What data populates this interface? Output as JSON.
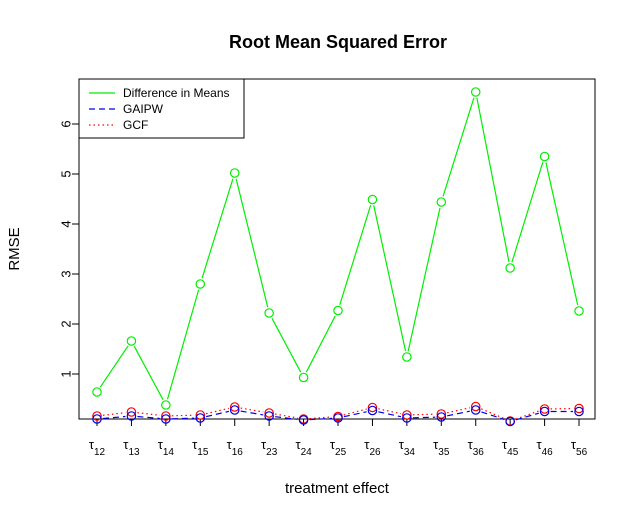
{
  "chart_data": {
    "type": "line",
    "title": "Root Mean Squared Error",
    "xlabel": "treatment effect",
    "ylabel": "RMSE",
    "categories": [
      {
        "base": "τ",
        "sub": "12"
      },
      {
        "base": "τ",
        "sub": "13"
      },
      {
        "base": "τ",
        "sub": "14"
      },
      {
        "base": "τ",
        "sub": "15"
      },
      {
        "base": "τ",
        "sub": "16"
      },
      {
        "base": "τ",
        "sub": "23"
      },
      {
        "base": "τ",
        "sub": "24"
      },
      {
        "base": "τ",
        "sub": "25"
      },
      {
        "base": "τ",
        "sub": "26"
      },
      {
        "base": "τ",
        "sub": "34"
      },
      {
        "base": "τ",
        "sub": "35"
      },
      {
        "base": "τ",
        "sub": "36"
      },
      {
        "base": "τ",
        "sub": "45"
      },
      {
        "base": "τ",
        "sub": "46"
      },
      {
        "base": "τ",
        "sub": "56"
      }
    ],
    "yticks": [
      1,
      2,
      3,
      4,
      5,
      6
    ],
    "ylim": [
      0.1,
      6.9
    ],
    "legend": {
      "position": "top-left"
    },
    "series": [
      {
        "name": "Difference in Means",
        "color": "#00ee00",
        "dash": "solid",
        "values": [
          0.64,
          1.66,
          0.38,
          2.8,
          5.02,
          2.22,
          0.93,
          2.27,
          4.49,
          1.34,
          4.44,
          6.64,
          3.12,
          5.35,
          2.26
        ]
      },
      {
        "name": "GAIPW",
        "color": "#0000ee",
        "dash": "dashed",
        "values": [
          0.1,
          0.16,
          0.1,
          0.12,
          0.28,
          0.16,
          0.08,
          0.12,
          0.27,
          0.12,
          0.14,
          0.28,
          0.05,
          0.25,
          0.25
        ]
      },
      {
        "name": "GCF",
        "color": "#ff0000",
        "dash": "dotted",
        "values": [
          0.16,
          0.24,
          0.16,
          0.18,
          0.34,
          0.22,
          0.1,
          0.15,
          0.33,
          0.18,
          0.2,
          0.35,
          0.06,
          0.3,
          0.31
        ]
      }
    ]
  }
}
